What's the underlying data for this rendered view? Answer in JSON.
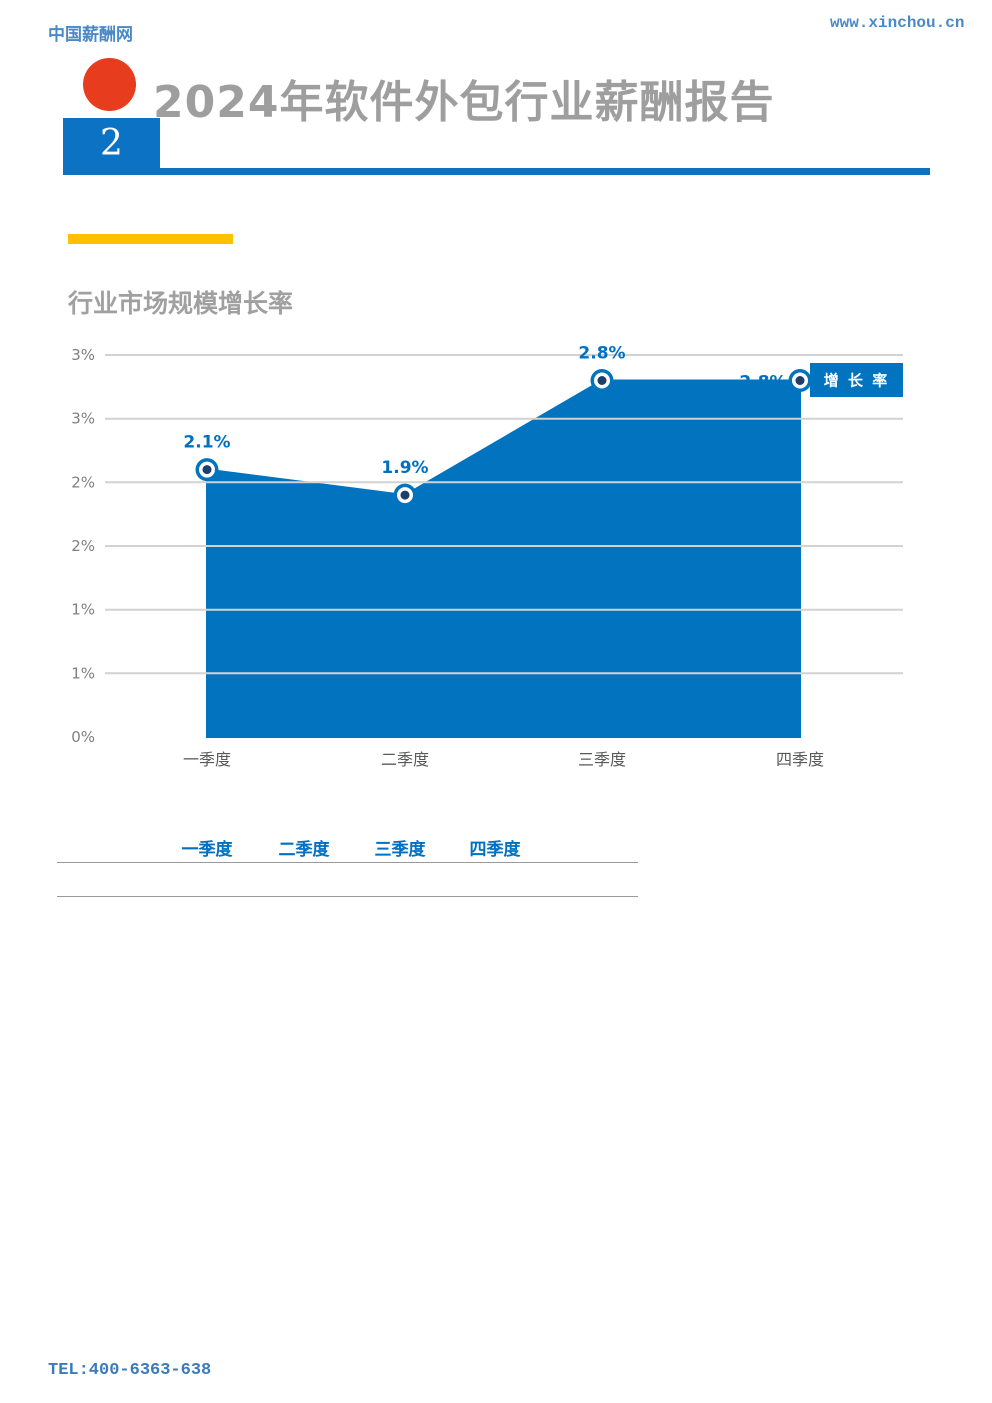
{
  "header": {
    "site_name": "中国薪酬网",
    "site_url": "www.xinchou.cn",
    "report_title": "2024年软件外包行业薪酬报告",
    "page_number": "2"
  },
  "section": {
    "chart_title": "行业市场规模增长率"
  },
  "chart_data": {
    "type": "area",
    "title": "行业市场规模增长率",
    "categories": [
      "一季度",
      "二季度",
      "三季度",
      "四季度"
    ],
    "series": [
      {
        "name": "增 长 率",
        "values": [
          2.1,
          1.9,
          2.8,
          2.8
        ]
      }
    ],
    "data_labels": [
      "2.1%",
      "1.9%",
      "2.8%",
      "2.8%"
    ],
    "ylim": [
      0,
      3
    ],
    "ytick_interval": 0.5,
    "ytick_labels_top_to_bottom": [
      "3%",
      "3%",
      "2%",
      "2%",
      "1%",
      "1%",
      "0%"
    ],
    "legend": {
      "label": "增 长 率",
      "position": "right-inside"
    },
    "grid": true,
    "colors": {
      "area_fill": "#0173bf",
      "marker_outer": "#0173bf",
      "marker_ring": "#ffffff",
      "marker_center": "#1f3e6b",
      "data_label": "#0070c0",
      "legend_bg": "#0173bf",
      "legend_text": "#ffffff",
      "gridline": "#d2d2d2",
      "ytick_text": "#808080",
      "xtick_text": "#595959"
    }
  },
  "table": {
    "headers": [
      "一季度",
      "二季度",
      "三季度",
      "四季度"
    ]
  },
  "footer": {
    "tel": "TEL:400-6363-638"
  },
  "theme": {
    "accent_blue": "#0c72c4",
    "highlight_yellow": "#ffc000",
    "brand_red": "#e73c1d",
    "title_gray": "#9e9e9e"
  }
}
